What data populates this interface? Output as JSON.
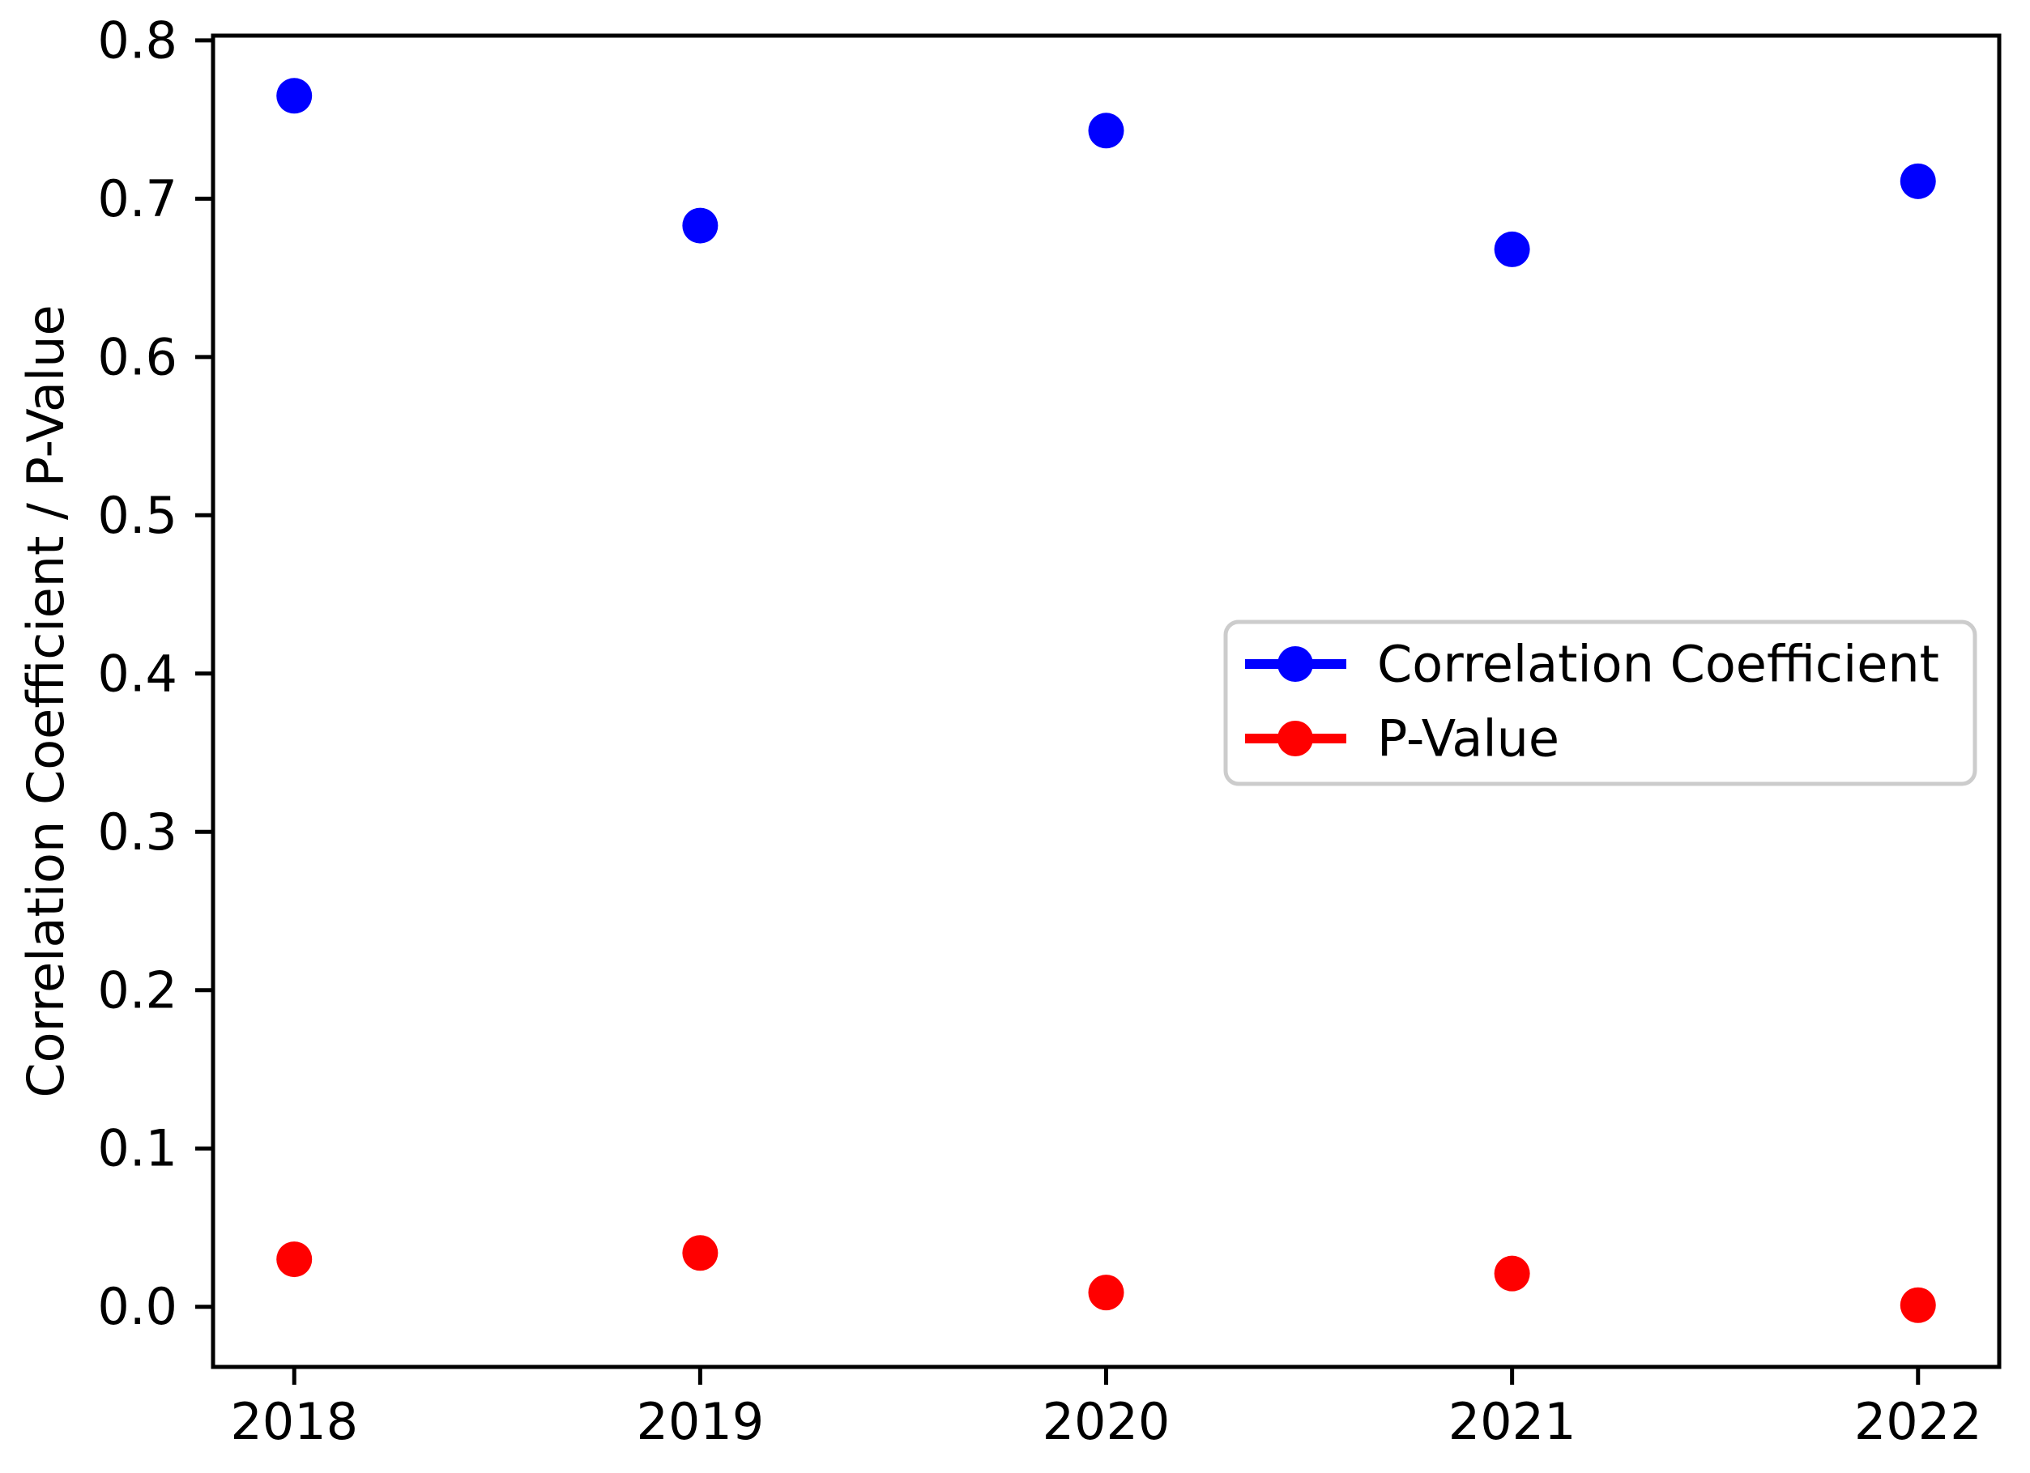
{
  "figure": {
    "background": "#ffffff"
  },
  "chart_data": {
    "type": "scatter",
    "x": [
      2018,
      2019,
      2020,
      2021,
      2022
    ],
    "categories": [
      "2018",
      "2019",
      "2020",
      "2021",
      "2022"
    ],
    "series": [
      {
        "name": "Correlation Coefficient",
        "color": "#0000ff",
        "values": [
          0.765,
          0.683,
          0.743,
          0.668,
          0.711
        ]
      },
      {
        "name": "P-Value",
        "color": "#ff0000",
        "values": [
          0.03,
          0.034,
          0.009,
          0.021,
          0.001
        ]
      }
    ],
    "title": "",
    "xlabel": "",
    "ylabel": "Correlation Coefficient / P-Value",
    "xlim": [
      2017.8,
      2022.2
    ],
    "ylim": [
      -0.038,
      0.803
    ],
    "xticks": [
      2018,
      2019,
      2020,
      2021,
      2022
    ],
    "xtick_labels": [
      "2018",
      "2019",
      "2020",
      "2021",
      "2022"
    ],
    "yticks": [
      0.0,
      0.1,
      0.2,
      0.3,
      0.4,
      0.5,
      0.6,
      0.7,
      0.8
    ],
    "ytick_labels": [
      "0.0",
      "0.1",
      "0.2",
      "0.3",
      "0.4",
      "0.5",
      "0.6",
      "0.7",
      "0.8"
    ],
    "grid": false,
    "legend": {
      "position": "center-right",
      "entries": [
        "Correlation Coefficient",
        "P-Value"
      ]
    },
    "marker": "circle",
    "axis_color": "#000000",
    "legend_border_color": "#cccccc",
    "legend_face_color": "#ffffff"
  }
}
